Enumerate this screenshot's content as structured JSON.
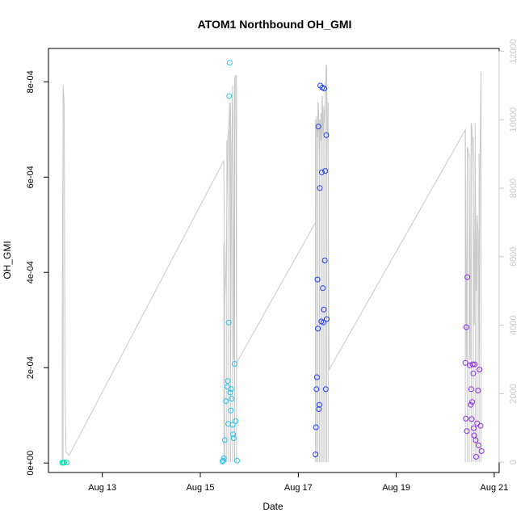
{
  "chart_data": {
    "type": "scatter",
    "title": "ATOM1 Northbound OH_GMI",
    "xlabel": "Date",
    "ylabel": "OH_GMI",
    "x_ticks": [
      {
        "day": 13,
        "label": "Aug 13"
      },
      {
        "day": 15,
        "label": "Aug 15"
      },
      {
        "day": 17,
        "label": "Aug 17"
      },
      {
        "day": 19,
        "label": "Aug 19"
      },
      {
        "day": 21,
        "label": "Aug 21"
      }
    ],
    "xlim_days": [
      11.9,
      21.1
    ],
    "y_ticks": [
      {
        "value": 0,
        "label": "0e+00"
      },
      {
        "value": 0.0002,
        "label": "2e-04"
      },
      {
        "value": 0.0004,
        "label": "4e-04"
      },
      {
        "value": 0.0006,
        "label": "6e-04"
      },
      {
        "value": 0.0008,
        "label": "8e-04"
      }
    ],
    "ylim": [
      -2e-05,
      0.00087
    ],
    "y2_ticks": [
      {
        "value": 0,
        "label": "0"
      },
      {
        "value": 2000,
        "label": "2000"
      },
      {
        "value": 4000,
        "label": "4000"
      },
      {
        "value": 6000,
        "label": "6000"
      },
      {
        "value": 8000,
        "label": "8000"
      },
      {
        "value": 10000,
        "label": "10000"
      },
      {
        "value": 12000,
        "label": "12000"
      }
    ],
    "y2lim": [
      -300,
      12080
    ],
    "altitude_color": "#c8c8c8",
    "altitude_line": [
      [
        12.18,
        3000
      ],
      [
        12.2,
        11000
      ],
      [
        12.22,
        10500
      ],
      [
        12.24,
        2000
      ],
      [
        12.26,
        300
      ],
      [
        12.32,
        200
      ],
      [
        15.48,
        8800
      ],
      [
        15.5,
        4700
      ],
      [
        15.52,
        5500
      ],
      [
        15.54,
        7000
      ],
      [
        15.56,
        9500
      ],
      [
        15.58,
        9800
      ],
      [
        15.6,
        10500
      ],
      [
        15.62,
        3000
      ],
      [
        15.64,
        9000
      ],
      [
        15.66,
        11000
      ],
      [
        15.68,
        3000
      ],
      [
        15.7,
        11200
      ],
      [
        15.72,
        11300
      ],
      [
        15.74,
        2900
      ],
      [
        15.78,
        3000
      ],
      [
        17.35,
        7000
      ],
      [
        17.37,
        10000
      ],
      [
        17.39,
        9500
      ],
      [
        17.41,
        10500
      ],
      [
        17.43,
        9000
      ],
      [
        17.45,
        10000
      ],
      [
        17.47,
        9400
      ],
      [
        17.49,
        10700
      ],
      [
        17.51,
        9600
      ],
      [
        17.53,
        10000
      ],
      [
        17.55,
        10500
      ],
      [
        17.57,
        11600
      ],
      [
        17.59,
        10400
      ],
      [
        17.61,
        8600
      ],
      [
        17.63,
        2700
      ],
      [
        20.41,
        9700
      ],
      [
        20.43,
        3000
      ],
      [
        20.45,
        9200
      ],
      [
        20.47,
        9100
      ],
      [
        20.49,
        8800
      ],
      [
        20.51,
        3000
      ],
      [
        20.53,
        9900
      ],
      [
        20.55,
        9700
      ],
      [
        20.57,
        8200
      ],
      [
        20.59,
        4000
      ],
      [
        20.61,
        9000
      ],
      [
        20.63,
        5000
      ],
      [
        20.65,
        7200
      ],
      [
        20.67,
        6700
      ],
      [
        20.69,
        2000
      ],
      [
        20.71,
        9000
      ],
      [
        20.73,
        11400
      ]
    ],
    "altitude_spikes": [
      [
        12.18,
        0,
        3000
      ],
      [
        12.2,
        0,
        11000
      ],
      [
        15.48,
        0,
        6400
      ],
      [
        15.5,
        0,
        4700
      ],
      [
        15.54,
        0,
        9400
      ],
      [
        15.58,
        0,
        9700
      ],
      [
        15.62,
        0,
        10500
      ],
      [
        15.66,
        0,
        11000
      ],
      [
        15.7,
        0,
        11200
      ],
      [
        15.74,
        0,
        11300
      ],
      [
        17.35,
        0,
        10000
      ],
      [
        17.37,
        0,
        10100
      ],
      [
        17.4,
        0,
        10500
      ],
      [
        17.43,
        0,
        10000
      ],
      [
        17.46,
        0,
        10200
      ],
      [
        17.49,
        0,
        10600
      ],
      [
        17.52,
        0,
        10400
      ],
      [
        17.55,
        0,
        11100
      ],
      [
        17.58,
        0,
        11600
      ],
      [
        17.61,
        0,
        10500
      ],
      [
        20.41,
        0,
        9700
      ],
      [
        20.45,
        0,
        9200
      ],
      [
        20.49,
        0,
        9000
      ],
      [
        20.53,
        0,
        9900
      ],
      [
        20.57,
        0,
        9500
      ],
      [
        20.61,
        0,
        9900
      ],
      [
        20.65,
        0,
        7200
      ],
      [
        20.69,
        0,
        9000
      ],
      [
        20.73,
        0,
        11400
      ]
    ],
    "series": [
      {
        "color": "#00e5b0",
        "points": [
          [
            12.18,
            5e-07
          ],
          [
            12.2,
            5e-07
          ],
          [
            12.22,
            1e-06
          ],
          [
            12.27,
            8e-07
          ]
        ]
      },
      {
        "color": "#22c4ee",
        "points": [
          [
            15.45,
            3e-06
          ],
          [
            15.47,
            5e-06
          ],
          [
            15.48,
            1e-05
          ],
          [
            15.5,
            4.8e-05
          ],
          [
            15.52,
            0.00013
          ],
          [
            15.55,
            0.00016
          ],
          [
            15.56,
            0.000172
          ],
          [
            15.57,
            8.2e-05
          ],
          [
            15.58,
            0.000295
          ],
          [
            15.59,
            0.00077
          ],
          [
            15.6,
            0.00084
          ],
          [
            15.61,
            0.000148
          ],
          [
            15.62,
            0.00011
          ],
          [
            15.63,
            0.000155
          ],
          [
            15.64,
            0.000135
          ],
          [
            15.66,
            8e-05
          ],
          [
            15.67,
            6e-05
          ],
          [
            15.68,
            5.2e-05
          ],
          [
            15.7,
            0.000208
          ],
          [
            15.72,
            8.8e-05
          ],
          [
            15.75,
            5e-06
          ]
        ]
      },
      {
        "color": "#1f3ff2",
        "points": [
          [
            17.35,
            1.8e-05
          ],
          [
            17.36,
            7.5e-05
          ],
          [
            17.37,
            0.000155
          ],
          [
            17.38,
            0.00018
          ],
          [
            17.39,
            0.000385
          ],
          [
            17.4,
            0.000282
          ],
          [
            17.41,
            0.000706
          ],
          [
            17.42,
            0.000113
          ],
          [
            17.43,
            0.000122
          ],
          [
            17.44,
            0.000577
          ],
          [
            17.45,
            0.000792
          ],
          [
            17.47,
            0.000297
          ],
          [
            17.48,
            0.00061
          ],
          [
            17.49,
            0.000788
          ],
          [
            17.5,
            0.000367
          ],
          [
            17.51,
            0.000295
          ],
          [
            17.52,
            0.000322
          ],
          [
            17.53,
            0.000786
          ],
          [
            17.54,
            0.000425
          ],
          [
            17.55,
            0.000613
          ],
          [
            17.56,
            0.000155
          ],
          [
            17.57,
            0.000688
          ],
          [
            17.58,
            0.000302
          ]
        ]
      },
      {
        "color": "#8a2be2",
        "points": [
          [
            20.41,
            0.00021
          ],
          [
            20.42,
            9.3e-05
          ],
          [
            20.43,
            0.000285
          ],
          [
            20.44,
            6.7e-05
          ],
          [
            20.45,
            0.00039
          ],
          [
            20.5,
            0.000205
          ],
          [
            20.52,
            0.000122
          ],
          [
            20.53,
            0.000155
          ],
          [
            20.54,
            9.2e-05
          ],
          [
            20.55,
            0.000128
          ],
          [
            20.56,
            0.000207
          ],
          [
            20.57,
            0.000188
          ],
          [
            20.58,
            7.3e-05
          ],
          [
            20.59,
            5.8e-05
          ],
          [
            20.6,
            0.000207
          ],
          [
            20.62,
            4.8e-05
          ],
          [
            20.63,
            1.3e-05
          ],
          [
            20.65,
            8.3e-05
          ],
          [
            20.67,
            0.000152
          ],
          [
            20.68,
            3.7e-05
          ],
          [
            20.7,
            0.000196
          ],
          [
            20.72,
            7.8e-05
          ],
          [
            20.74,
            2.5e-05
          ]
        ]
      }
    ],
    "grid": false,
    "legend": "none"
  }
}
